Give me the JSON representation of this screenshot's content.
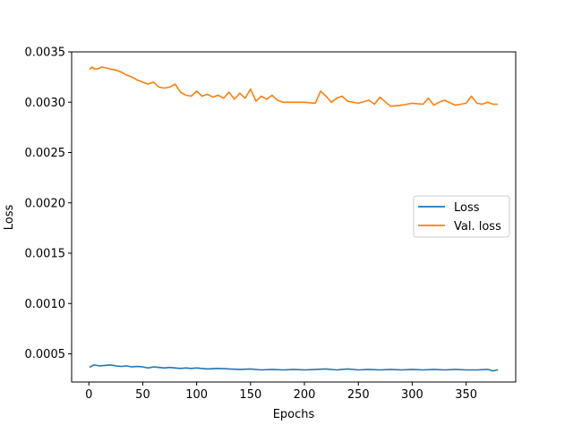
{
  "chart_data": {
    "type": "line",
    "xlabel": "Epochs",
    "ylabel": "Loss",
    "xlim": [
      -16,
      396
    ],
    "ylim": [
      0.00022,
      0.0035
    ],
    "xticks": [
      0,
      50,
      100,
      150,
      200,
      250,
      300,
      350
    ],
    "xtick_labels": [
      "0",
      "50",
      "100",
      "150",
      "200",
      "250",
      "300",
      "350"
    ],
    "yticks": [
      0.0005,
      0.001,
      0.0015,
      0.002,
      0.0025,
      0.003,
      0.0035
    ],
    "ytick_labels": [
      "0.0005",
      "0.0010",
      "0.0015",
      "0.0020",
      "0.0025",
      "0.0030",
      "0.0035"
    ],
    "grid": false,
    "legend_position": "center-right",
    "series": [
      {
        "name": "Loss",
        "color": "#1f77b4",
        "x": [
          1,
          5,
          10,
          15,
          20,
          25,
          30,
          35,
          40,
          45,
          50,
          55,
          60,
          65,
          70,
          75,
          80,
          85,
          90,
          95,
          100,
          110,
          120,
          130,
          140,
          150,
          160,
          170,
          180,
          190,
          200,
          210,
          220,
          230,
          240,
          250,
          260,
          270,
          280,
          290,
          300,
          310,
          320,
          330,
          340,
          350,
          360,
          370,
          375,
          379
        ],
        "y": [
          0.00037,
          0.00039,
          0.00038,
          0.000385,
          0.00039,
          0.00038,
          0.000375,
          0.00038,
          0.00037,
          0.000375,
          0.00037,
          0.00036,
          0.00037,
          0.000365,
          0.00036,
          0.000365,
          0.00036,
          0.000355,
          0.00036,
          0.000355,
          0.00036,
          0.00035,
          0.000355,
          0.00035,
          0.000345,
          0.00035,
          0.00034,
          0.000345,
          0.00034,
          0.000345,
          0.00034,
          0.000345,
          0.00035,
          0.00034,
          0.00035,
          0.00034,
          0.000345,
          0.00034,
          0.000345,
          0.00034,
          0.000345,
          0.00034,
          0.000345,
          0.00034,
          0.000345,
          0.00034,
          0.00034,
          0.000345,
          0.00033,
          0.00034
        ]
      },
      {
        "name": "Val. loss",
        "color": "#ff7f0e",
        "x": [
          1,
          3,
          5,
          8,
          12,
          16,
          20,
          25,
          30,
          35,
          40,
          45,
          50,
          55,
          60,
          65,
          70,
          75,
          80,
          85,
          90,
          95,
          100,
          105,
          110,
          115,
          120,
          125,
          130,
          135,
          140,
          145,
          150,
          155,
          160,
          165,
          170,
          175,
          180,
          190,
          200,
          210,
          215,
          220,
          225,
          230,
          235,
          240,
          250,
          260,
          265,
          270,
          280,
          290,
          300,
          310,
          315,
          320,
          325,
          330,
          340,
          350,
          355,
          360,
          365,
          370,
          375,
          379
        ],
        "y": [
          0.00333,
          0.00335,
          0.00333,
          0.00333,
          0.00335,
          0.00334,
          0.00333,
          0.00332,
          0.0033,
          0.00327,
          0.00325,
          0.00322,
          0.0032,
          0.00318,
          0.0032,
          0.00315,
          0.00314,
          0.00315,
          0.00318,
          0.0031,
          0.00307,
          0.00306,
          0.00311,
          0.00306,
          0.00308,
          0.00305,
          0.00307,
          0.00304,
          0.0031,
          0.00303,
          0.00309,
          0.00304,
          0.00313,
          0.00301,
          0.00306,
          0.00303,
          0.00307,
          0.00302,
          0.003,
          0.003,
          0.003,
          0.00299,
          0.00311,
          0.00306,
          0.003,
          0.00304,
          0.00306,
          0.00301,
          0.00299,
          0.00302,
          0.00298,
          0.00305,
          0.00296,
          0.00297,
          0.00299,
          0.00298,
          0.00304,
          0.00297,
          0.003,
          0.00302,
          0.00297,
          0.00299,
          0.00306,
          0.00299,
          0.00298,
          0.003,
          0.00298,
          0.00298
        ]
      }
    ]
  }
}
